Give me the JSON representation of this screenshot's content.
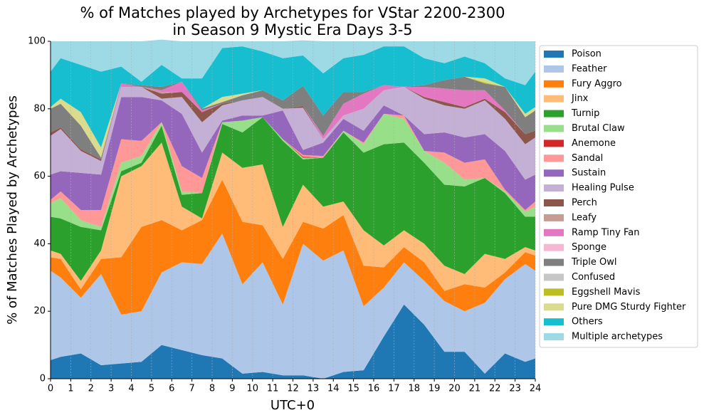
{
  "chart_data": {
    "type": "stacked_area",
    "title": [
      "% of Matches played by Archetypes for VStar 2200-2300",
      "in Season 9 Mystic Era Days 3-5"
    ],
    "xlabel": "UTC+0",
    "ylabel": "% of Matches Played by Archetypes",
    "x": [
      0,
      0.5,
      1.5,
      2.5,
      3.5,
      4.5,
      5.5,
      6.5,
      7.5,
      8.5,
      9.5,
      10.5,
      11.5,
      12.5,
      13.5,
      14.5,
      15.5,
      16.5,
      17.5,
      18.5,
      19.5,
      20.5,
      21.5,
      22.5,
      23.5,
      24
    ],
    "xlim": [
      0,
      24
    ],
    "xticks": [
      0,
      1,
      2,
      3,
      4,
      5,
      6,
      7,
      8,
      9,
      10,
      11,
      12,
      13,
      14,
      15,
      16,
      17,
      18,
      19,
      20,
      21,
      22,
      23,
      24
    ],
    "ylim": [
      0,
      100
    ],
    "yticks": [
      0,
      20,
      40,
      60,
      80,
      100
    ],
    "grid": "x",
    "legend": "outside-right",
    "series": [
      {
        "name": "Poison",
        "color": "#1f77b4",
        "values": [
          5.5,
          6.5,
          7.5,
          4,
          4.5,
          5,
          10,
          8.5,
          7,
          6,
          1.5,
          2,
          1,
          1,
          0,
          2,
          2.5,
          12.5,
          22,
          16,
          8,
          8,
          1.5,
          7.5,
          5,
          6
        ]
      },
      {
        "name": "Feather",
        "color": "#aec7e8",
        "values": [
          26.5,
          23.5,
          16.5,
          27,
          14.5,
          15,
          21.5,
          26,
          27,
          37,
          26.5,
          32.5,
          21,
          39,
          35,
          36,
          19,
          14.5,
          12.5,
          13,
          15,
          12,
          21,
          22,
          29,
          26
        ]
      },
      {
        "name": "Fury Aggro",
        "color": "#ff7f0e",
        "values": [
          4,
          5.5,
          2.5,
          4.5,
          17,
          25,
          15.5,
          9.5,
          13,
          16,
          18.5,
          11,
          13.5,
          6.5,
          9.5,
          10.5,
          12,
          6,
          4.5,
          5.5,
          3,
          8,
          4.5,
          2,
          3.5,
          4.5
        ]
      },
      {
        "name": "Jinx",
        "color": "#ffbb78",
        "values": [
          2,
          1.5,
          2.5,
          2.5,
          24,
          18,
          23,
          7,
          0.5,
          8,
          16,
          18,
          9.5,
          11,
          6.5,
          4,
          10.5,
          6.5,
          5,
          5.5,
          7.5,
          3,
          10,
          4,
          1.5,
          1.5
        ]
      },
      {
        "name": "Turnip",
        "color": "#2ca02c",
        "values": [
          10,
          10.5,
          16,
          6,
          1.5,
          1,
          5,
          3.5,
          7.5,
          8.5,
          10.5,
          14,
          25.5,
          7.5,
          14.5,
          20.5,
          23,
          30,
          26,
          24,
          24,
          26,
          22.5,
          19.5,
          9,
          10
        ]
      },
      {
        "name": "Brutal Claw",
        "color": "#98df8a",
        "values": [
          4,
          6,
          2,
          1,
          2.5,
          2,
          1,
          1,
          0,
          0.5,
          3.5,
          0,
          0.5,
          0.5,
          0,
          0.5,
          2.5,
          9,
          7,
          3.5,
          6.5,
          2,
          0,
          0.5,
          1.5,
          3
        ]
      },
      {
        "name": "Anemone",
        "color": "#d62728",
        "values": [
          0,
          0,
          0,
          0,
          0,
          0,
          0,
          0,
          0,
          0,
          0,
          0,
          0,
          0.3,
          0,
          0,
          0,
          0,
          0,
          0,
          0,
          0,
          0,
          0,
          0,
          0
        ]
      },
      {
        "name": "Sandal",
        "color": "#ff9896",
        "values": [
          1,
          2,
          3,
          5,
          7,
          4.5,
          0,
          7.5,
          4.5,
          0,
          0,
          0,
          0,
          0.5,
          0.5,
          0,
          0.5,
          0,
          1,
          0,
          3,
          5,
          5.5,
          0.5,
          0.5,
          1.5
        ]
      },
      {
        "name": "Sustain",
        "color": "#9467bd",
        "values": [
          7.5,
          6,
          11,
          10.5,
          12.5,
          13,
          6.5,
          15.5,
          7.5,
          0.5,
          1.5,
          0.5,
          8.5,
          1.5,
          4,
          3.5,
          3.5,
          2.5,
          0,
          5,
          6,
          7.5,
          7.5,
          11.5,
          9,
          8
        ]
      },
      {
        "name": "Healing Pulse",
        "color": "#c5b0d5",
        "values": [
          11.5,
          12.5,
          6.5,
          4,
          3,
          3,
          0.5,
          5,
          9,
          4.5,
          4.5,
          5.5,
          0.5,
          12.5,
          1,
          1,
          6.5,
          4.5,
          8.5,
          10.5,
          8,
          8.5,
          10,
          9.5,
          10.5,
          11
        ]
      },
      {
        "name": "Perch",
        "color": "#8c564b",
        "values": [
          1,
          0.5,
          0.5,
          0.5,
          0,
          0,
          1.5,
          1.5,
          3,
          0.5,
          0,
          0,
          0,
          0.5,
          0,
          0,
          0,
          0,
          0,
          0.5,
          1,
          0.5,
          0.5,
          2,
          3,
          2
        ]
      },
      {
        "name": "Leafy",
        "color": "#c49c94",
        "values": [
          0,
          0,
          0,
          0,
          0,
          0,
          0.5,
          0,
          0,
          0,
          0,
          0,
          0,
          0,
          0,
          0,
          0,
          0,
          0,
          0,
          0,
          0,
          0,
          0,
          0,
          0
        ]
      },
      {
        "name": "Ramp Tiny Fan",
        "color": "#e377c2",
        "values": [
          0,
          0,
          0,
          0,
          1,
          0,
          0.5,
          3,
          0.5,
          0,
          0,
          0,
          0,
          0,
          1,
          3.5,
          4.5,
          1.5,
          0,
          3,
          4,
          5,
          2.5,
          0.5,
          0,
          0
        ]
      },
      {
        "name": "Sponge",
        "color": "#f7b6d2",
        "values": [
          0,
          0,
          0,
          0,
          0,
          0,
          0,
          0,
          0,
          0,
          0,
          0,
          0,
          0,
          0,
          0,
          0,
          0,
          0,
          0,
          0,
          0,
          0,
          0,
          0,
          0
        ]
      },
      {
        "name": "Triple Owl",
        "color": "#7f7f7f",
        "values": [
          7,
          7,
          7,
          0.5,
          0,
          0.5,
          1,
          0,
          0.5,
          0.5,
          1.5,
          2,
          2.5,
          6,
          6,
          3.5,
          0.5,
          0,
          0,
          0.5,
          2.5,
          4,
          2,
          7,
          5,
          6
        ]
      },
      {
        "name": "Confused",
        "color": "#c7c7c7",
        "values": [
          0,
          0,
          0,
          0,
          0,
          0,
          0,
          0,
          0,
          0,
          0,
          0,
          0,
          0,
          0,
          0,
          0,
          0,
          0,
          0,
          0,
          0,
          0,
          0,
          0,
          0
        ]
      },
      {
        "name": "Eggshell Mavis",
        "color": "#bcbd22",
        "values": [
          0,
          0,
          0,
          0,
          0,
          0,
          0,
          0,
          0,
          0,
          0,
          0,
          0,
          0,
          0,
          0,
          0,
          0,
          0,
          0,
          0,
          0,
          0.3,
          0,
          0,
          0
        ]
      },
      {
        "name": "Pure DMG Sturdy Fighter",
        "color": "#dbdb8d",
        "values": [
          0.5,
          1.5,
          4,
          3,
          0,
          0,
          0,
          0,
          0,
          1.5,
          0.5,
          0,
          0,
          0,
          0,
          0,
          0,
          0,
          0,
          0,
          0,
          0,
          1.2,
          0,
          1,
          1
        ]
      },
      {
        "name": "Others",
        "color": "#17becf",
        "values": [
          10.5,
          12,
          14,
          22.5,
          5,
          1,
          6.5,
          1,
          9,
          14.5,
          14,
          11.5,
          12.5,
          9,
          12.5,
          10,
          11,
          11.5,
          12,
          8,
          5,
          6,
          4.5,
          2.5,
          8.5,
          10.5
        ]
      },
      {
        "name": "Multiple archetypes",
        "color": "#9edae5",
        "values": [
          9,
          5,
          7,
          9,
          7.5,
          12,
          7.5,
          11,
          11,
          2,
          1.5,
          3,
          5,
          4.5,
          9.5,
          5,
          4,
          1.5,
          1.5,
          5,
          6.5,
          4.5,
          6.5,
          11,
          13,
          9
        ]
      }
    ]
  }
}
